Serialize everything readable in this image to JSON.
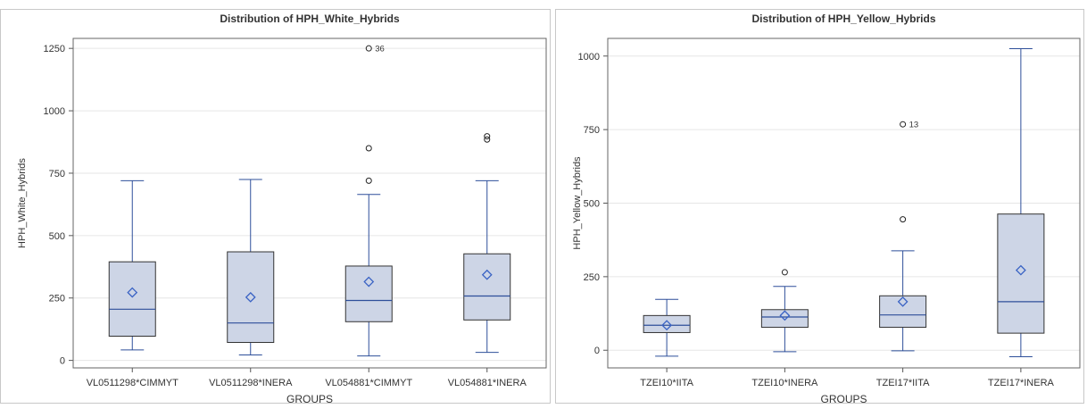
{
  "chart_data": [
    {
      "type": "box",
      "title": "Distribution of HPH_White_Hybrids",
      "xlabel": "GROUPS",
      "ylabel": "HPH_White_Hybrids",
      "ylim": [
        -30,
        1290
      ],
      "yticks": [
        0,
        250,
        500,
        750,
        1000,
        1250
      ],
      "ytick_labels": [
        "0",
        "250",
        "500",
        "750",
        "1000",
        "1250"
      ],
      "grid": true,
      "colors": {
        "box_fill": "#cdd5e6",
        "box_stroke": "#333333",
        "whisker": "#2e4f9a",
        "median": "#2e4f9a",
        "mean_marker": "#3a63c4",
        "outlier": "#222222"
      },
      "groups": [
        {
          "label": "VL0511298*CIMMYT",
          "min": 42,
          "q1": 97,
          "median": 205,
          "q3": 395,
          "max": 720,
          "mean": 272,
          "outliers": []
        },
        {
          "label": "VL0511298*INERA",
          "min": 22,
          "q1": 72,
          "median": 150,
          "q3": 435,
          "max": 725,
          "mean": 253,
          "outliers": []
        },
        {
          "label": "VL054881*CIMMYT",
          "min": 18,
          "q1": 155,
          "median": 240,
          "q3": 378,
          "max": 665,
          "mean": 315,
          "outliers": [
            {
              "value": 720
            },
            {
              "value": 850
            },
            {
              "value": 1250,
              "label": "36"
            }
          ]
        },
        {
          "label": "VL054881*INERA",
          "min": 32,
          "q1": 162,
          "median": 258,
          "q3": 427,
          "max": 720,
          "mean": 343,
          "outliers": [
            {
              "value": 885
            },
            {
              "value": 898
            }
          ]
        }
      ]
    },
    {
      "type": "box",
      "title": "Distribution of HPH_Yellow_Hybrids",
      "xlabel": "GROUPS",
      "ylabel": "HPH_Yellow_Hybrids",
      "ylim": [
        -60,
        1060
      ],
      "yticks": [
        0,
        250,
        500,
        750,
        1000
      ],
      "ytick_labels": [
        "0",
        "250",
        "500",
        "750",
        "1000"
      ],
      "grid": true,
      "colors": {
        "box_fill": "#cdd5e6",
        "box_stroke": "#333333",
        "whisker": "#2e4f9a",
        "median": "#2e4f9a",
        "mean_marker": "#3a63c4",
        "outlier": "#222222"
      },
      "groups": [
        {
          "label": "TZEI10*IITA",
          "min": -20,
          "q1": 60,
          "median": 85,
          "q3": 118,
          "max": 173,
          "mean": 85,
          "outliers": []
        },
        {
          "label": "TZEI10*INERA",
          "min": -5,
          "q1": 78,
          "median": 113,
          "q3": 138,
          "max": 217,
          "mean": 118,
          "outliers": [
            {
              "value": 265
            }
          ]
        },
        {
          "label": "TZEI17*IITA",
          "min": -2,
          "q1": 78,
          "median": 120,
          "q3": 185,
          "max": 338,
          "mean": 165,
          "outliers": [
            {
              "value": 445
            },
            {
              "value": 768,
              "label": "13"
            }
          ]
        },
        {
          "label": "TZEI17*INERA",
          "min": -22,
          "q1": 58,
          "median": 165,
          "q3": 463,
          "max": 1025,
          "mean": 272,
          "outliers": []
        }
      ]
    }
  ]
}
